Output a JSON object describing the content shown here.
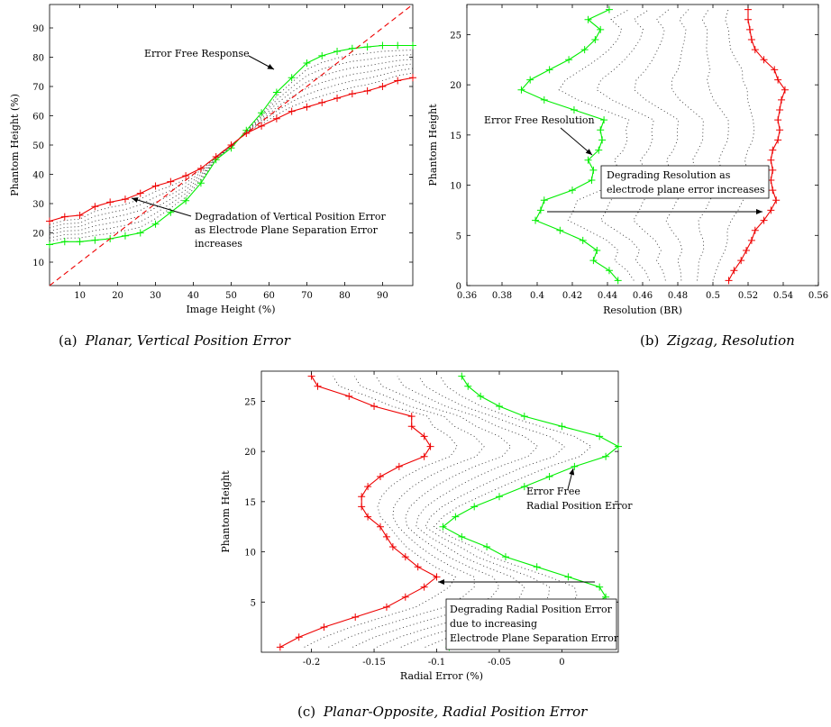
{
  "chart_data": [
    {
      "type": "line",
      "panel": "a",
      "caption": {
        "tag": "(a)",
        "title": "Planar, Vertical Position Error"
      },
      "xlabel": "Image Height (%)",
      "ylabel": "Phantom Height (%)",
      "xlim": [
        2,
        98
      ],
      "ylim": [
        2,
        98
      ],
      "xticks": [
        10,
        20,
        30,
        40,
        50,
        60,
        70,
        80,
        90
      ],
      "yticks": [
        10,
        20,
        30,
        40,
        50,
        60,
        70,
        80,
        90
      ],
      "grid": false,
      "series": [
        {
          "role": "error_free",
          "color": "#00ee00",
          "style": "solid",
          "marker": "+",
          "x": [
            2,
            6,
            10,
            14,
            18,
            22,
            26,
            30,
            34,
            38,
            42,
            46,
            50,
            54,
            58,
            62,
            66,
            70,
            74,
            78,
            82,
            86,
            90,
            94,
            98
          ],
          "y": [
            16,
            17,
            17,
            17.5,
            18,
            19,
            20,
            23,
            27,
            31,
            37,
            45,
            49,
            55,
            61,
            68,
            73,
            78,
            80.5,
            82,
            83,
            83.5,
            84,
            84,
            84
          ]
        },
        {
          "role": "max_error",
          "color": "#ee0000",
          "style": "solid",
          "marker": "+",
          "x": [
            2,
            6,
            10,
            14,
            18,
            22,
            26,
            30,
            34,
            38,
            42,
            46,
            50,
            54,
            58,
            62,
            66,
            70,
            74,
            78,
            82,
            86,
            90,
            94,
            98
          ],
          "y": [
            24,
            25.5,
            26,
            29,
            30.5,
            31.5,
            33.5,
            36,
            37.5,
            39.5,
            42,
            46,
            50,
            54,
            56.5,
            59,
            61.5,
            63,
            64.5,
            66,
            67.5,
            68.5,
            70,
            72,
            73
          ]
        },
        {
          "role": "ideal",
          "color": "#ee0000",
          "style": "dashed",
          "marker": "none",
          "x": [
            2,
            98
          ],
          "y": [
            2,
            98
          ]
        }
      ],
      "intermediate": {
        "count": 6,
        "style": "dotted",
        "color": "#333333"
      },
      "annotations": [
        {
          "text": [
            "Error Free Response"
          ]
        },
        {
          "text": [
            "Degradation of Vertical Position Error",
            "as Electrode Plane Separation Error",
            "increases"
          ]
        }
      ]
    },
    {
      "type": "line",
      "panel": "b",
      "caption": {
        "tag": "(b)",
        "title": "Zigzag, Resolution"
      },
      "xlabel": "Resolution (BR)",
      "ylabel": "Phantom Height",
      "xlim": [
        0.36,
        0.56
      ],
      "ylim": [
        0,
        28
      ],
      "xticks": [
        0.36,
        0.38,
        0.4,
        0.42,
        0.44,
        0.46,
        0.48,
        0.5,
        0.52,
        0.54,
        0.56
      ],
      "xticklabels": [
        "0.36",
        "0.38",
        "0.4",
        "0.42",
        "0.44",
        "0.46",
        "0.48",
        "0.5",
        "0.52",
        "0.54",
        "0.56"
      ],
      "yticks": [
        0,
        5,
        10,
        15,
        20,
        25
      ],
      "grid": false,
      "series": [
        {
          "role": "error_free",
          "color": "#00ee00",
          "style": "solid",
          "marker": "+",
          "x": [
            0.446,
            0.441,
            0.432,
            0.434,
            0.426,
            0.413,
            0.399,
            0.402,
            0.404,
            0.42,
            0.431,
            0.432,
            0.429,
            0.435,
            0.437,
            0.436,
            0.438,
            0.421,
            0.404,
            0.391,
            0.396,
            0.407,
            0.418,
            0.427,
            0.433,
            0.436,
            0.429,
            0.441
          ],
          "y": [
            0.5,
            1.5,
            2.5,
            3.5,
            4.5,
            5.5,
            6.5,
            7.5,
            8.5,
            9.5,
            10.5,
            11.5,
            12.5,
            13.5,
            14.5,
            15.5,
            16.5,
            17.5,
            18.5,
            19.5,
            20.5,
            21.5,
            22.5,
            23.5,
            24.5,
            25.5,
            26.5,
            27.5
          ]
        },
        {
          "role": "max_error",
          "color": "#ee0000",
          "style": "solid",
          "marker": "+",
          "x": [
            0.509,
            0.512,
            0.516,
            0.519,
            0.522,
            0.524,
            0.529,
            0.533,
            0.536,
            0.534,
            0.533,
            0.534,
            0.533,
            0.534,
            0.537,
            0.538,
            0.537,
            0.538,
            0.539,
            0.541,
            0.537,
            0.535,
            0.529,
            0.524,
            0.522,
            0.521,
            0.52,
            0.52
          ],
          "y": [
            0.5,
            1.5,
            2.5,
            3.5,
            4.5,
            5.5,
            6.5,
            7.5,
            8.5,
            9.5,
            10.5,
            11.5,
            12.5,
            13.5,
            14.5,
            15.5,
            16.5,
            17.5,
            18.5,
            19.5,
            20.5,
            21.5,
            22.5,
            23.5,
            24.5,
            25.5,
            26.5,
            27.5
          ]
        }
      ],
      "intermediate": {
        "count": 6,
        "style": "dotted",
        "color": "#333333"
      },
      "annotations": [
        {
          "text": [
            "Error Free Resolution"
          ]
        },
        {
          "text": [
            "Degrading Resolution as",
            "electrode plane error increases"
          ]
        }
      ]
    },
    {
      "type": "line",
      "panel": "c",
      "caption": {
        "tag": "(c)",
        "title": "Planar-Opposite, Radial Position Error"
      },
      "xlabel": "Radial Error (%)",
      "ylabel": "Phantom Height",
      "xlim": [
        -0.24,
        0.045
      ],
      "ylim": [
        0,
        28
      ],
      "xticks": [
        -0.2,
        -0.15,
        -0.1,
        -0.05,
        0
      ],
      "xticklabels": [
        "-0.2",
        "-0.15",
        "-0.1",
        "-0.05",
        "0"
      ],
      "yticks": [
        5,
        10,
        15,
        20,
        25
      ],
      "grid": false,
      "series": [
        {
          "role": "error_free",
          "color": "#00ee00",
          "style": "solid",
          "marker": "+",
          "x": [
            -0.09,
            -0.07,
            -0.04,
            -0.01,
            0.022,
            0.035,
            0.03,
            0.005,
            -0.02,
            -0.045,
            -0.06,
            -0.08,
            -0.095,
            -0.085,
            -0.07,
            -0.05,
            -0.03,
            -0.01,
            0.01,
            0.035,
            0.045,
            0.03,
            0.0,
            -0.03,
            -0.05,
            -0.065,
            -0.075,
            -0.08
          ],
          "y": [
            0.5,
            1.5,
            2.5,
            3.5,
            4.5,
            5.5,
            6.5,
            7.5,
            8.5,
            9.5,
            10.5,
            11.5,
            12.5,
            13.5,
            14.5,
            15.5,
            16.5,
            17.5,
            18.5,
            19.5,
            20.5,
            21.5,
            22.5,
            23.5,
            24.5,
            25.5,
            26.5,
            27.5
          ]
        },
        {
          "role": "max_error",
          "color": "#ee0000",
          "style": "solid",
          "marker": "+",
          "x": [
            -0.225,
            -0.21,
            -0.19,
            -0.165,
            -0.14,
            -0.125,
            -0.11,
            -0.1,
            -0.115,
            -0.125,
            -0.135,
            -0.14,
            -0.145,
            -0.155,
            -0.16,
            -0.16,
            -0.155,
            -0.145,
            -0.13,
            -0.11,
            -0.105,
            -0.11,
            -0.12,
            -0.12,
            -0.15,
            -0.17,
            -0.195,
            -0.2
          ],
          "y": [
            0.5,
            1.5,
            2.5,
            3.5,
            4.5,
            5.5,
            6.5,
            7.5,
            8.5,
            9.5,
            10.5,
            11.5,
            12.5,
            13.5,
            14.5,
            15.5,
            16.5,
            17.5,
            18.5,
            19.5,
            20.5,
            21.5,
            22.5,
            23.5,
            24.5,
            25.5,
            26.5,
            27.5
          ]
        }
      ],
      "intermediate": {
        "count": 6,
        "style": "dotted",
        "color": "#333333"
      },
      "annotations": [
        {
          "text": [
            "Error Free",
            "Radial Position Error"
          ]
        },
        {
          "text": [
            "Degrading Radial Position Error",
            "due to increasing",
            "Electrode Plane Separation Error"
          ]
        }
      ]
    }
  ]
}
